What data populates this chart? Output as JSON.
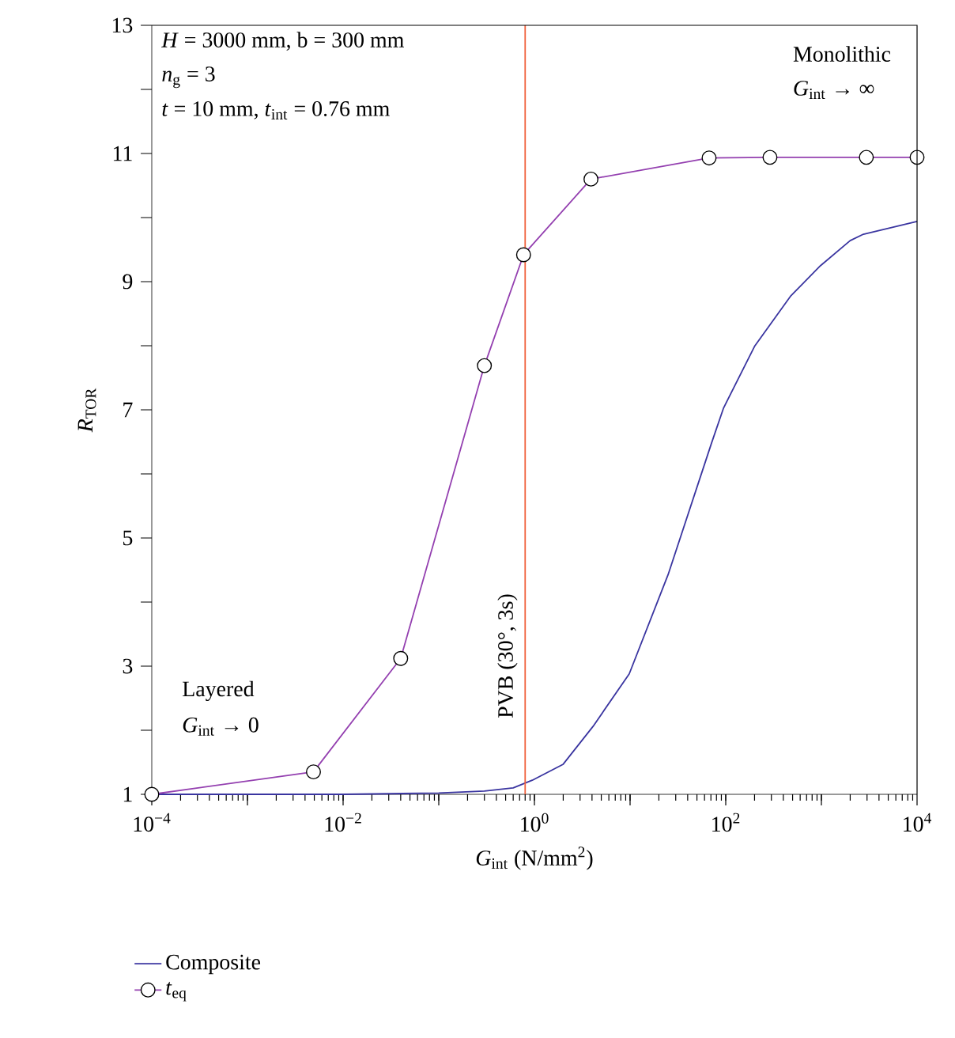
{
  "chart_data": {
    "type": "line",
    "xlabel": "*G*$_{int}$ (N/mm$^{2}$)",
    "ylabel": "*R*$_{TOR}$",
    "log": "x",
    "xlim": [
      0.0001,
      10000
    ],
    "ylim": [
      1,
      13
    ],
    "xticks": [
      {
        "value": 0.0001,
        "label": "10$^{−4}$"
      },
      {
        "value": 0.001,
        "label": null
      },
      {
        "value": 0.01,
        "label": "10$^{−2}$"
      },
      {
        "value": 0.1,
        "label": null
      },
      {
        "value": 1,
        "label": "10$^{0}$"
      },
      {
        "value": 10,
        "label": null
      },
      {
        "value": 100,
        "label": "10$^{2}$"
      },
      {
        "value": 1000,
        "label": null
      },
      {
        "value": 10000,
        "label": "10$^{4}$"
      }
    ],
    "yticks": [
      1,
      {
        "value": 2,
        "label": null
      },
      3,
      {
        "value": 4,
        "label": null
      },
      5,
      {
        "value": 6,
        "label": null
      },
      7,
      {
        "value": 8,
        "label": null
      },
      9,
      {
        "value": 10,
        "label": null
      },
      11,
      {
        "value": 12,
        "label": null
      },
      13
    ],
    "grid": false,
    "legend": "bottom",
    "series": [
      {
        "name": "Composite",
        "color": "#3a35a0",
        "marker": "none",
        "x": [
          0.0001,
          0.001,
          0.01,
          0.1,
          0.3,
          0.6,
          0.95,
          2,
          4.1,
          9.8,
          25,
          71,
          95,
          200,
          480,
          980,
          2000,
          2750,
          10000
        ],
        "values": [
          1,
          1,
          1,
          1.02,
          1.05,
          1.1,
          1.22,
          1.47,
          2.06,
          2.88,
          4.43,
          6.48,
          7.03,
          7.99,
          8.78,
          9.25,
          9.64,
          9.74,
          9.94
        ]
      },
      {
        "name": "*t*$_{eq}$",
        "color": "#9440b0",
        "marker": "circle",
        "x": [
          0.0001,
          0.0049,
          0.04,
          0.3,
          0.77,
          3.9,
          67,
          290,
          2950,
          10000
        ],
        "values": [
          1,
          1.35,
          3.12,
          7.69,
          9.42,
          10.6,
          10.93,
          10.94,
          10.94,
          10.94
        ]
      }
    ],
    "ref_lines": [
      {
        "axis": "x",
        "value": 0.8,
        "label": "PVB (30°, 3s)",
        "color": "#f0603c"
      }
    ],
    "annotations": [
      "*H* = 3000 mm, b = 300 mm",
      "*n*$_{g}$ = 3",
      "*t* = 10 mm, *t*$_{int}$ = 0.76 mm",
      "Monolithic",
      "*G*$_{int}$ → ∞",
      "Layered",
      "*G*$_{int}$ → 0"
    ]
  }
}
